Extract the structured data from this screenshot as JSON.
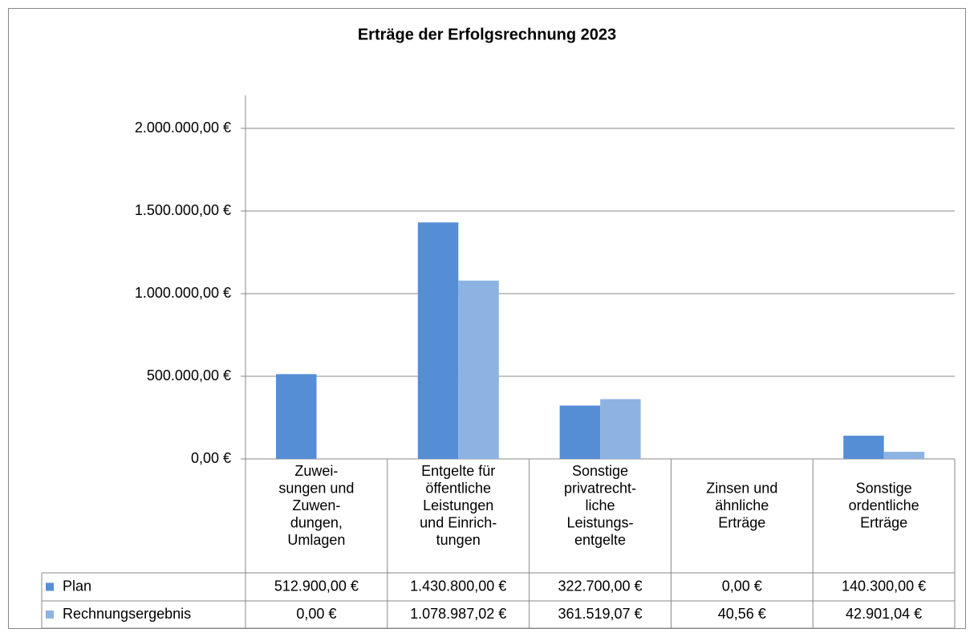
{
  "chart_data": {
    "type": "bar",
    "title": "Erträge der Erfolgsrechnung 2023",
    "categories": [
      "Zuwei-\nsungen und\nZuwen-\ndungen,\nUmlagen",
      "Entgelte für\nöffentliche\nLeistungen\nund Einrich-\ntungen",
      "Sonstige\nprivatrecht-\nliche\nLeistungs-\nentgelte",
      "Zinsen und\nähnliche\nErträge",
      "Sonstige\nordentliche\nErträge"
    ],
    "series": [
      {
        "name": "Plan",
        "color": "#558ed5",
        "values": [
          512900,
          1430800,
          322700,
          0,
          140300
        ],
        "value_labels": [
          "512.900,00 €",
          "1.430.800,00 €",
          "322.700,00 €",
          "0,00 €",
          "140.300,00 €"
        ]
      },
      {
        "name": "Rechnungsergebnis",
        "color": "#8db3e2",
        "values": [
          0,
          1078987.02,
          361519.07,
          40.56,
          42901.04
        ],
        "value_labels": [
          "0,00 €",
          "1.078.987,02 €",
          "361.519,07 €",
          "40,56 €",
          "42.901,04 €"
        ]
      }
    ],
    "ylim": [
      0,
      2200000
    ],
    "yticks": [
      {
        "value": 0,
        "label": "0,00 €"
      },
      {
        "value": 500000,
        "label": "500.000,00 €"
      },
      {
        "value": 1000000,
        "label": "1.000.000,00 €"
      },
      {
        "value": 1500000,
        "label": "1.500.000,00 €"
      },
      {
        "value": 2000000,
        "label": "2.000.000,00 €"
      }
    ],
    "grid": true
  }
}
